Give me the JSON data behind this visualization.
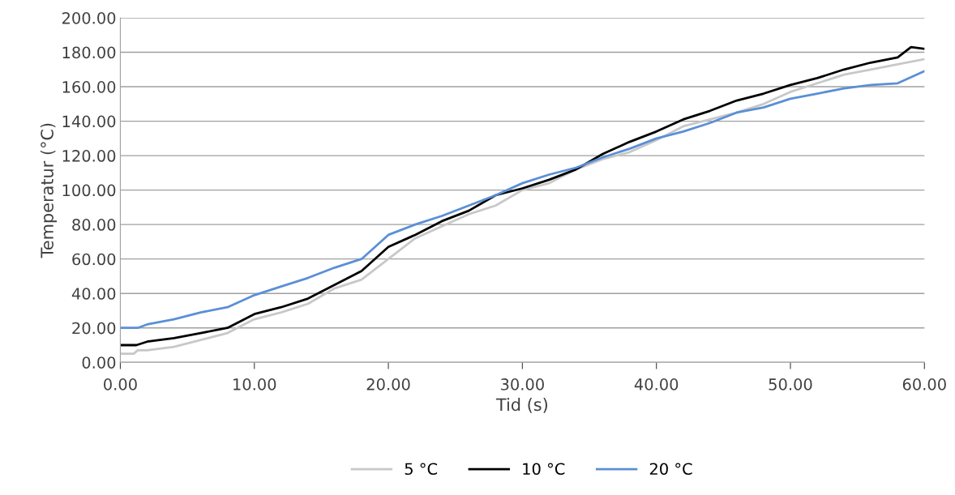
{
  "chart_data": {
    "type": "line",
    "xlabel": "Tid (s)",
    "ylabel": "Temperatur (°C)",
    "xlim": [
      0,
      60
    ],
    "xticks": [
      {
        "value": 0,
        "label": "0.00"
      },
      {
        "value": 10,
        "label": "10.00"
      },
      {
        "value": 20,
        "label": "20.00"
      },
      {
        "value": 30,
        "label": "30.00"
      },
      {
        "value": 40,
        "label": "40.00"
      },
      {
        "value": 50,
        "label": "50.00"
      },
      {
        "value": 60,
        "label": "60.00"
      }
    ],
    "ylim": [
      0,
      200
    ],
    "yticks": [
      {
        "value": 0,
        "label": "0.00"
      },
      {
        "value": 20,
        "label": "20.00"
      },
      {
        "value": 40,
        "label": "40.00"
      },
      {
        "value": 60,
        "label": "60.00"
      },
      {
        "value": 80,
        "label": "80.00"
      },
      {
        "value": 100,
        "label": "100.00"
      },
      {
        "value": 120,
        "label": "120.00"
      },
      {
        "value": 140,
        "label": "140.00"
      },
      {
        "value": 160,
        "label": "160.00"
      },
      {
        "value": 180,
        "label": "180.00"
      },
      {
        "value": 200,
        "label": "200.00"
      }
    ],
    "grid": "y",
    "legend": "bottom",
    "line_style": "solid",
    "series": [
      {
        "name": "5 °C",
        "color": "#c8c8c8",
        "x": [
          0,
          1,
          1.3,
          2,
          4,
          6,
          8,
          10,
          12,
          14,
          16,
          18,
          20,
          22,
          24,
          26,
          28,
          30,
          32,
          34,
          36,
          38,
          40,
          42,
          44,
          46,
          48,
          50,
          52,
          54,
          56,
          58,
          60
        ],
        "values": [
          5,
          5,
          7,
          7,
          9,
          13,
          17,
          25,
          29,
          34,
          43,
          48,
          60,
          72,
          79,
          86,
          91,
          100,
          104,
          112,
          118,
          122,
          129,
          137,
          141,
          145,
          150,
          157,
          162,
          167,
          170,
          173,
          176
        ]
      },
      {
        "name": "10 °C",
        "color": "#000000",
        "x": [
          0,
          1.2,
          2,
          4,
          6,
          8,
          10,
          12,
          14,
          16,
          18,
          20,
          22,
          24,
          26,
          28,
          30,
          32,
          34,
          36,
          38,
          40,
          42,
          44,
          46,
          48,
          50,
          52,
          54,
          56,
          58,
          59,
          60
        ],
        "values": [
          10,
          10,
          12,
          14,
          17,
          20,
          28,
          32,
          37,
          45,
          53,
          67,
          74,
          82,
          88,
          97,
          101,
          106,
          112,
          121,
          128,
          134,
          141,
          146,
          152,
          156,
          161,
          165,
          170,
          174,
          177,
          183,
          182
        ]
      },
      {
        "name": "20 °C",
        "color": "#5b8fd6",
        "x": [
          0,
          1.3,
          2,
          4,
          6,
          8,
          10,
          12,
          14,
          16,
          18,
          20,
          22,
          24,
          26,
          28,
          30,
          32,
          34,
          36,
          38,
          40,
          42,
          44,
          46,
          48,
          50,
          52,
          54,
          56,
          58,
          60
        ],
        "values": [
          20,
          20,
          22,
          25,
          29,
          32,
          39,
          44,
          49,
          55,
          60,
          74,
          80,
          85,
          91,
          97,
          104,
          109,
          113,
          119,
          124,
          130,
          134,
          139,
          145,
          148,
          153,
          156,
          159,
          161,
          162,
          169
        ]
      }
    ]
  }
}
